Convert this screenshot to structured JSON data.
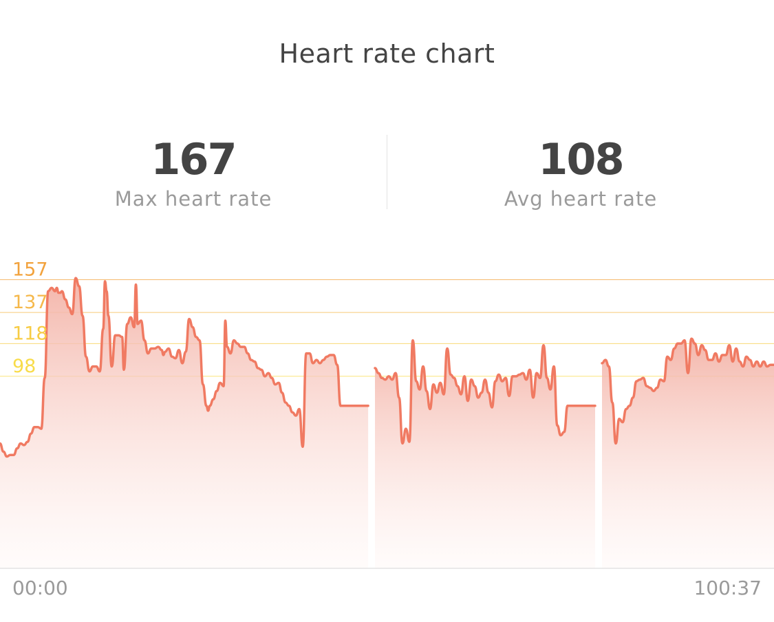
{
  "title": "Heart rate chart",
  "stats": {
    "max": {
      "value": "167",
      "label": "Max heart rate"
    },
    "avg": {
      "value": "108",
      "label": "Avg heart rate"
    }
  },
  "chart_data": {
    "type": "area",
    "x_start_label": "00:00",
    "x_end_label": "100:37",
    "ylim": [
      35,
      160
    ],
    "zones": [
      {
        "label": "157",
        "value": 157,
        "color": "#f2a23c"
      },
      {
        "label": "137",
        "value": 137,
        "color": "#f5b84a"
      },
      {
        "label": "118",
        "value": 118,
        "color": "#f7cc45"
      },
      {
        "label": "98",
        "value": 98,
        "color": "#f8dc4a"
      }
    ],
    "line_color": "#f07a62",
    "fill_top_color": "#f3b2a6",
    "segments": [
      {
        "x": [
          0,
          0.44,
          0.89,
          1.33,
          1.78,
          2.22,
          2.67,
          3.11,
          3.56,
          4.0,
          4.44,
          4.89,
          5.33,
          5.78,
          6.22,
          6.67,
          7.11,
          7.33,
          7.56,
          7.78,
          8.0,
          8.44,
          8.89,
          9.33,
          9.78,
          10.22,
          10.67,
          11.11,
          11.56,
          12.0,
          12.44,
          12.89,
          13.33,
          13.56,
          13.78,
          14.0,
          14.44,
          14.89,
          15.33,
          15.78,
          16.0,
          16.44,
          16.89,
          17.33,
          17.56,
          17.78,
          18.22,
          18.67,
          19.11,
          19.56,
          20.0,
          20.44,
          20.89,
          21.11,
          21.33,
          21.78,
          22.22,
          22.67,
          23.11,
          23.56,
          24.0,
          24.44,
          24.89,
          25.33,
          25.78,
          26.22,
          26.67,
          26.89,
          27.11,
          27.56,
          28.0,
          28.44,
          28.89,
          29.11,
          29.33,
          29.78,
          30.22,
          30.67,
          31.11,
          31.56,
          32.0,
          32.44,
          32.89,
          33.33,
          33.78,
          34.22,
          34.67,
          35.11,
          35.56,
          36.0,
          36.44,
          36.89,
          37.33,
          37.78,
          38.22,
          38.67,
          39.11,
          39.56,
          40.0,
          40.44,
          40.89,
          41.33,
          41.78,
          42.22,
          42.67,
          43.11,
          43.56,
          44.0,
          44.44,
          44.89,
          45.33,
          45.78,
          46.22,
          46.67,
          47.11,
          47.56
        ],
        "y": [
          57,
          52,
          49,
          50,
          50,
          54,
          57,
          56,
          58,
          63,
          67,
          67,
          66,
          97,
          150,
          152,
          150,
          152,
          149,
          149,
          150,
          145,
          140,
          136,
          158,
          153,
          135,
          110,
          101,
          104,
          104,
          101,
          127,
          156,
          150,
          135,
          104,
          123,
          123,
          122,
          102,
          130,
          134,
          128,
          154,
          130,
          132,
          120,
          112,
          115,
          115,
          116,
          114,
          111,
          113,
          115,
          110,
          109,
          114,
          106,
          113,
          133,
          128,
          122,
          120,
          93,
          80,
          77,
          80,
          84,
          89,
          94,
          92,
          132,
          116,
          112,
          120,
          118,
          116,
          116,
          112,
          108,
          107,
          103,
          102,
          98,
          100,
          97,
          93,
          94,
          88,
          82,
          80,
          76,
          74,
          78,
          55,
          112,
          112,
          106,
          108,
          106,
          108,
          110,
          111,
          111,
          105,
          80,
          80,
          80,
          80,
          80,
          80,
          80,
          80,
          80
        ]
      },
      {
        "x": [
          48.44,
          48.89,
          49.33,
          49.78,
          50.22,
          50.67,
          51.11,
          51.56,
          52.0,
          52.44,
          52.89,
          53.33,
          53.78,
          54.22,
          54.67,
          55.11,
          55.56,
          56.0,
          56.44,
          56.89,
          57.33,
          57.78,
          58.22,
          58.67,
          59.11,
          59.56,
          60.0,
          60.44,
          60.89,
          61.33,
          61.78,
          62.22,
          62.67,
          63.11,
          63.56,
          64.0,
          64.44,
          64.89,
          65.33,
          65.78,
          66.22,
          66.67,
          67.11,
          67.56,
          68.0,
          68.44,
          68.89,
          69.33,
          69.78,
          70.22,
          70.67,
          71.11,
          71.56,
          72.0,
          72.44,
          72.89,
          73.33,
          73.78,
          74.22,
          74.67,
          75.11,
          75.56,
          76.0,
          76.44,
          76.89
        ],
        "y": [
          103,
          100,
          97,
          96,
          98,
          96,
          100,
          85,
          57,
          66,
          58,
          120,
          95,
          90,
          104,
          89,
          78,
          93,
          88,
          94,
          87,
          115,
          99,
          97,
          92,
          87,
          98,
          83,
          96,
          92,
          85,
          88,
          96,
          88,
          79,
          95,
          99,
          95,
          97,
          86,
          98,
          98,
          99,
          100,
          96,
          102,
          85,
          100,
          97,
          117,
          97,
          90,
          104,
          68,
          62,
          64,
          80,
          80,
          80,
          80,
          80,
          80,
          80,
          80,
          80
        ]
      },
      {
        "x": [
          77.78,
          78.22,
          78.67,
          79.11,
          79.56,
          80.0,
          80.44,
          80.89,
          81.33,
          81.78,
          82.22,
          82.67,
          83.11,
          83.56,
          84.0,
          84.44,
          84.89,
          85.33,
          85.78,
          86.22,
          86.67,
          87.11,
          87.56,
          88.0,
          88.44,
          88.89,
          89.33,
          89.78,
          90.22,
          90.67,
          91.11,
          91.56,
          92.0,
          92.44,
          92.89,
          93.33,
          93.78,
          94.22,
          94.67,
          95.11,
          95.56,
          96.0,
          96.44,
          96.89,
          97.33,
          97.78,
          98.22,
          98.67,
          99.11,
          99.56,
          100.0
        ],
        "y": [
          106,
          108,
          104,
          82,
          57,
          72,
          70,
          78,
          80,
          85,
          95,
          96,
          97,
          92,
          91,
          89,
          91,
          96,
          95,
          110,
          108,
          115,
          118,
          118,
          120,
          100,
          121,
          118,
          111,
          117,
          114,
          108,
          108,
          112,
          107,
          111,
          111,
          117,
          107,
          115,
          107,
          104,
          110,
          108,
          104,
          107,
          104,
          107,
          104,
          105,
          105
        ]
      }
    ]
  }
}
